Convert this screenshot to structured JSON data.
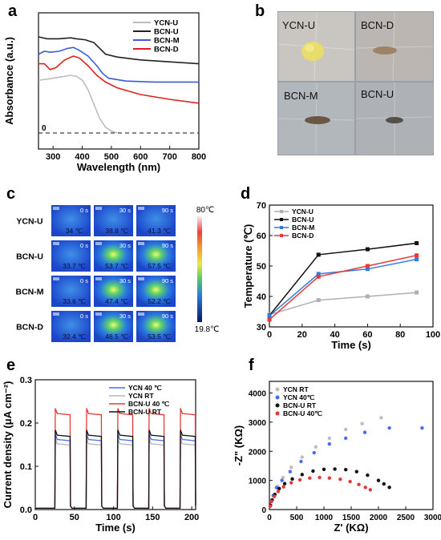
{
  "panels": {
    "a": "a",
    "b": "b",
    "c": "c",
    "d": "d",
    "e": "e",
    "f": "f"
  },
  "photos": [
    {
      "label": "YCN-U"
    },
    {
      "label": "BCN-D"
    },
    {
      "label": "BCN-M"
    },
    {
      "label": "BCN-U"
    }
  ],
  "thermal": {
    "rows": [
      "YCN-U",
      "BCN-U",
      "BCN-M",
      "BCN-D"
    ],
    "times": [
      "0 s",
      "30 s",
      "90 s"
    ],
    "temps": [
      [
        "34 ℃",
        "38.8 ℃",
        "41.3 ℃"
      ],
      [
        "33.7 ℃",
        "53.7 ℃",
        "57.5 ℃"
      ],
      [
        "33.6 ℃",
        "47.4 ℃",
        "52.2 ℃"
      ],
      [
        "32.4 ℃",
        "46.5 ℃",
        "53.5 ℃"
      ]
    ],
    "scale_max": "80℃",
    "scale_min": "19.8℃"
  },
  "chart_data": [
    {
      "id": "a",
      "type": "line",
      "xlabel": "Wavelength (nm)",
      "ylabel": "Absorbance (a.u.)",
      "xlim": [
        250,
        800
      ],
      "xticks": [
        300,
        400,
        500,
        600,
        700,
        800
      ],
      "zero_label": "0",
      "series": [
        {
          "name": "YCN-U",
          "color": "#bdbdbd",
          "points": [
            [
              250,
              0.55
            ],
            [
              280,
              0.56
            ],
            [
              320,
              0.58
            ],
            [
              360,
              0.6
            ],
            [
              380,
              0.59
            ],
            [
              400,
              0.55
            ],
            [
              420,
              0.45
            ],
            [
              440,
              0.3
            ],
            [
              460,
              0.15
            ],
            [
              480,
              0.06
            ],
            [
              500,
              0.02
            ],
            [
              520,
              0.0
            ]
          ]
        },
        {
          "name": "BCN-U",
          "color": "#222222",
          "points": [
            [
              250,
              1.0
            ],
            [
              280,
              0.98
            ],
            [
              320,
              0.98
            ],
            [
              360,
              0.99
            ],
            [
              380,
              0.98
            ],
            [
              410,
              0.97
            ],
            [
              440,
              0.94
            ],
            [
              460,
              0.88
            ],
            [
              480,
              0.82
            ],
            [
              520,
              0.79
            ],
            [
              600,
              0.76
            ],
            [
              700,
              0.74
            ],
            [
              800,
              0.72
            ]
          ]
        },
        {
          "name": "BCN-M",
          "color": "#3b5bdb",
          "points": [
            [
              250,
              0.82
            ],
            [
              270,
              0.85
            ],
            [
              290,
              0.84
            ],
            [
              320,
              0.85
            ],
            [
              350,
              0.88
            ],
            [
              370,
              0.89
            ],
            [
              390,
              0.86
            ],
            [
              420,
              0.8
            ],
            [
              450,
              0.7
            ],
            [
              470,
              0.62
            ],
            [
              490,
              0.57
            ],
            [
              550,
              0.54
            ],
            [
              650,
              0.53
            ],
            [
              800,
              0.53
            ]
          ]
        },
        {
          "name": "BCN-D",
          "color": "#e02020",
          "points": [
            [
              250,
              0.72
            ],
            [
              270,
              0.72
            ],
            [
              290,
              0.66
            ],
            [
              310,
              0.68
            ],
            [
              340,
              0.76
            ],
            [
              370,
              0.8
            ],
            [
              390,
              0.78
            ],
            [
              420,
              0.7
            ],
            [
              450,
              0.6
            ],
            [
              480,
              0.53
            ],
            [
              520,
              0.47
            ],
            [
              600,
              0.4
            ],
            [
              700,
              0.35
            ],
            [
              800,
              0.31
            ]
          ]
        }
      ]
    },
    {
      "id": "d",
      "type": "line",
      "xlabel": "Time (s)",
      "ylabel": "Temperature (℃)",
      "xlim": [
        0,
        100
      ],
      "ylim": [
        30,
        70
      ],
      "xticks": [
        0,
        20,
        40,
        60,
        80,
        100
      ],
      "yticks": [
        30,
        40,
        50,
        60,
        70
      ],
      "series": [
        {
          "name": "YCN-U",
          "color": "#b0b0b0",
          "x": [
            0,
            30,
            60,
            90
          ],
          "y": [
            34,
            38.8,
            40,
            41.3
          ]
        },
        {
          "name": "BCN-U",
          "color": "#111111",
          "x": [
            0,
            30,
            60,
            90
          ],
          "y": [
            33.7,
            53.7,
            55.5,
            57.5
          ]
        },
        {
          "name": "BCN-M",
          "color": "#2f7de1",
          "x": [
            0,
            30,
            60,
            90
          ],
          "y": [
            33.6,
            47.4,
            49,
            52.2
          ]
        },
        {
          "name": "BCN-D",
          "color": "#e53935",
          "x": [
            0,
            30,
            60,
            90
          ],
          "y": [
            32.4,
            46.5,
            50,
            53.5
          ]
        }
      ]
    },
    {
      "id": "e",
      "type": "line",
      "xlabel": "Time (s)",
      "ylabel": "Current density (μA cm⁻²)",
      "xlim": [
        0,
        205
      ],
      "ylim": [
        0,
        0.3
      ],
      "xticks": [
        0,
        50,
        100,
        150,
        200
      ],
      "yticks": [
        0.0,
        0.1,
        0.2,
        0.3
      ],
      "on_off": [
        [
          25,
          45
        ],
        [
          65,
          85
        ],
        [
          105,
          125
        ],
        [
          145,
          165
        ],
        [
          185,
          205
        ]
      ],
      "series": [
        {
          "name": "YCN 40 ℃",
          "color": "#4a6cf7",
          "on": 0.162
        },
        {
          "name": "YCN RT",
          "color": "#b5b5b5",
          "on": 0.152
        },
        {
          "name": "BCN-U 40 ℃",
          "color": "#e53935",
          "on": 0.222
        },
        {
          "name": "BCN-U RT",
          "color": "#111111",
          "on": 0.172
        }
      ]
    },
    {
      "id": "f",
      "type": "scatter",
      "xlabel": "Z' (KΩ)",
      "ylabel": "-Z\" (KΩ)",
      "xlim": [
        0,
        3000
      ],
      "ylim": [
        0,
        4400
      ],
      "xticks": [
        0,
        500,
        1000,
        1500,
        2000,
        2500,
        3000
      ],
      "yticks": [
        0,
        1000,
        2000,
        3000,
        4000
      ],
      "series": [
        {
          "name": "YCN RT",
          "color": "#bdbdbd",
          "points": [
            [
              40,
              300
            ],
            [
              80,
              500
            ],
            [
              150,
              800
            ],
            [
              250,
              1100
            ],
            [
              400,
              1450
            ],
            [
              600,
              1800
            ],
            [
              850,
              2150
            ],
            [
              1100,
              2450
            ],
            [
              1400,
              2750
            ],
            [
              1700,
              2950
            ],
            [
              2050,
              3150
            ]
          ]
        },
        {
          "name": "YCN 40℃",
          "color": "#4a6cf7",
          "points": [
            [
              30,
              280
            ],
            [
              70,
              480
            ],
            [
              130,
              750
            ],
            [
              230,
              1000
            ],
            [
              380,
              1300
            ],
            [
              580,
              1650
            ],
            [
              820,
              1950
            ],
            [
              1100,
              2250
            ],
            [
              1400,
              2450
            ],
            [
              1750,
              2650
            ],
            [
              2200,
              2800
            ],
            [
              2800,
              2800
            ]
          ]
        },
        {
          "name": "BCN-U RT",
          "color": "#111111",
          "points": [
            [
              20,
              150
            ],
            [
              50,
              330
            ],
            [
              100,
              520
            ],
            [
              180,
              720
            ],
            [
              280,
              890
            ],
            [
              420,
              1050
            ],
            [
              600,
              1200
            ],
            [
              800,
              1320
            ],
            [
              1000,
              1380
            ],
            [
              1200,
              1390
            ],
            [
              1400,
              1370
            ],
            [
              1600,
              1300
            ],
            [
              1800,
              1180
            ],
            [
              2000,
              1000
            ],
            [
              2100,
              880
            ],
            [
              2200,
              760
            ]
          ]
        },
        {
          "name": "BCN-U 40℃",
          "color": "#e53935",
          "points": [
            [
              15,
              120
            ],
            [
              40,
              280
            ],
            [
              90,
              450
            ],
            [
              160,
              620
            ],
            [
              260,
              780
            ],
            [
              400,
              920
            ],
            [
              560,
              1020
            ],
            [
              740,
              1080
            ],
            [
              920,
              1100
            ],
            [
              1100,
              1080
            ],
            [
              1300,
              1040
            ],
            [
              1480,
              960
            ],
            [
              1640,
              860
            ],
            [
              1760,
              760
            ],
            [
              1850,
              680
            ]
          ]
        }
      ]
    }
  ]
}
